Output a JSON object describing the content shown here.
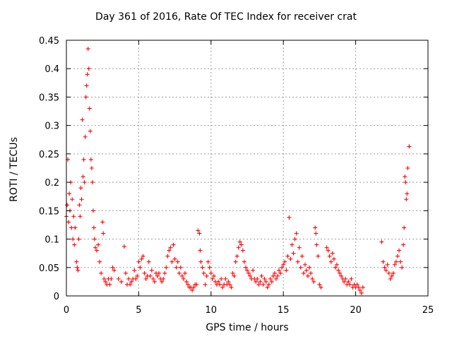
{
  "chart_data": {
    "type": "scatter",
    "title": "Day 361 of 2016, Rate Of TEC Index for receiver crat",
    "xlabel": "GPS time / hours",
    "ylabel": "ROTI / TECUs",
    "xlim": [
      0,
      25
    ],
    "ylim": [
      0,
      0.45
    ],
    "x_ticks": [
      0,
      5,
      10,
      15,
      20,
      25
    ],
    "y_ticks": [
      0,
      0.05,
      0.1,
      0.15,
      0.2,
      0.25,
      0.3,
      0.35,
      0.4,
      0.45
    ],
    "x_tick_labels": [
      "0",
      "5",
      "10",
      "15",
      "20",
      "25"
    ],
    "y_tick_labels": [
      "0",
      "0.05",
      "0.1",
      "0.15",
      "0.2",
      "0.25",
      "0.3",
      "0.35",
      "0.4",
      "0.45"
    ],
    "grid": true,
    "marker": "+",
    "marker_color": "#ff0000",
    "series": [
      {
        "name": "ROTI",
        "points": [
          [
            0.0,
            0.14
          ],
          [
            0.05,
            0.16
          ],
          [
            0.1,
            0.24
          ],
          [
            0.15,
            0.13
          ],
          [
            0.2,
            0.18
          ],
          [
            0.25,
            0.15
          ],
          [
            0.3,
            0.2
          ],
          [
            0.35,
            0.12
          ],
          [
            0.4,
            0.17
          ],
          [
            0.45,
            0.1
          ],
          [
            0.5,
            0.14
          ],
          [
            0.55,
            0.09
          ],
          [
            0.6,
            0.12
          ],
          [
            0.7,
            0.06
          ],
          [
            0.75,
            0.05
          ],
          [
            0.8,
            0.045
          ],
          [
            0.85,
            0.1
          ],
          [
            0.9,
            0.16
          ],
          [
            0.95,
            0.14
          ],
          [
            1.0,
            0.19
          ],
          [
            1.05,
            0.17
          ],
          [
            1.1,
            0.31
          ],
          [
            1.15,
            0.21
          ],
          [
            1.2,
            0.24
          ],
          [
            1.25,
            0.2
          ],
          [
            1.3,
            0.28
          ],
          [
            1.35,
            0.35
          ],
          [
            1.4,
            0.37
          ],
          [
            1.45,
            0.39
          ],
          [
            1.5,
            0.435
          ],
          [
            1.55,
            0.4
          ],
          [
            1.6,
            0.33
          ],
          [
            1.65,
            0.29
          ],
          [
            1.7,
            0.24
          ],
          [
            1.75,
            0.225
          ],
          [
            1.8,
            0.2
          ],
          [
            1.85,
            0.15
          ],
          [
            1.9,
            0.12
          ],
          [
            1.95,
            0.1
          ],
          [
            2.0,
            0.085
          ],
          [
            2.1,
            0.08
          ],
          [
            2.2,
            0.09
          ],
          [
            2.3,
            0.06
          ],
          [
            2.4,
            0.04
          ],
          [
            2.5,
            0.13
          ],
          [
            2.55,
            0.11
          ],
          [
            2.6,
            0.03
          ],
          [
            2.7,
            0.025
          ],
          [
            2.8,
            0.02
          ],
          [
            2.9,
            0.03
          ],
          [
            3.0,
            0.02
          ],
          [
            3.1,
            0.03
          ],
          [
            3.2,
            0.05
          ],
          [
            3.3,
            0.045
          ],
          [
            3.6,
            0.03
          ],
          [
            3.8,
            0.025
          ],
          [
            4.0,
            0.087
          ],
          [
            4.1,
            0.04
          ],
          [
            4.2,
            0.02
          ],
          [
            4.3,
            0.03
          ],
          [
            4.4,
            0.02
          ],
          [
            4.5,
            0.025
          ],
          [
            4.6,
            0.03
          ],
          [
            4.7,
            0.045
          ],
          [
            4.8,
            0.03
          ],
          [
            4.9,
            0.035
          ],
          [
            5.0,
            0.06
          ],
          [
            5.1,
            0.05
          ],
          [
            5.2,
            0.065
          ],
          [
            5.3,
            0.07
          ],
          [
            5.4,
            0.04
          ],
          [
            5.5,
            0.03
          ],
          [
            5.6,
            0.035
          ],
          [
            5.7,
            0.06
          ],
          [
            5.8,
            0.035
          ],
          [
            5.9,
            0.045
          ],
          [
            6.0,
            0.03
          ],
          [
            6.1,
            0.025
          ],
          [
            6.2,
            0.04
          ],
          [
            6.3,
            0.035
          ],
          [
            6.4,
            0.04
          ],
          [
            6.5,
            0.03
          ],
          [
            6.6,
            0.025
          ],
          [
            6.7,
            0.03
          ],
          [
            6.8,
            0.04
          ],
          [
            6.9,
            0.05
          ],
          [
            7.0,
            0.07
          ],
          [
            7.1,
            0.08
          ],
          [
            7.2,
            0.085
          ],
          [
            7.3,
            0.06
          ],
          [
            7.4,
            0.09
          ],
          [
            7.5,
            0.065
          ],
          [
            7.6,
            0.05
          ],
          [
            7.7,
            0.06
          ],
          [
            7.8,
            0.04
          ],
          [
            7.9,
            0.05
          ],
          [
            8.0,
            0.035
          ],
          [
            8.1,
            0.03
          ],
          [
            8.2,
            0.04
          ],
          [
            8.3,
            0.025
          ],
          [
            8.4,
            0.02
          ],
          [
            8.5,
            0.015
          ],
          [
            8.6,
            0.015
          ],
          [
            8.7,
            0.01
          ],
          [
            8.8,
            0.015
          ],
          [
            8.9,
            0.02
          ],
          [
            9.0,
            0.02
          ],
          [
            9.1,
            0.115
          ],
          [
            9.2,
            0.11
          ],
          [
            9.25,
            0.08
          ],
          [
            9.3,
            0.06
          ],
          [
            9.4,
            0.05
          ],
          [
            9.5,
            0.04
          ],
          [
            9.6,
            0.02
          ],
          [
            9.7,
            0.035
          ],
          [
            9.8,
            0.06
          ],
          [
            9.9,
            0.05
          ],
          [
            10.0,
            0.04
          ],
          [
            10.1,
            0.03
          ],
          [
            10.2,
            0.035
          ],
          [
            10.3,
            0.025
          ],
          [
            10.4,
            0.02
          ],
          [
            10.5,
            0.025
          ],
          [
            10.6,
            0.02
          ],
          [
            10.7,
            0.03
          ],
          [
            10.8,
            0.015
          ],
          [
            10.9,
            0.02
          ],
          [
            11.0,
            0.03
          ],
          [
            11.1,
            0.02
          ],
          [
            11.2,
            0.025
          ],
          [
            11.3,
            0.02
          ],
          [
            11.4,
            0.015
          ],
          [
            11.5,
            0.04
          ],
          [
            11.6,
            0.035
          ],
          [
            11.7,
            0.06
          ],
          [
            11.8,
            0.07
          ],
          [
            11.9,
            0.085
          ],
          [
            12.0,
            0.095
          ],
          [
            12.1,
            0.09
          ],
          [
            12.2,
            0.08
          ],
          [
            12.3,
            0.06
          ],
          [
            12.4,
            0.05
          ],
          [
            12.5,
            0.045
          ],
          [
            12.6,
            0.04
          ],
          [
            12.7,
            0.035
          ],
          [
            12.8,
            0.03
          ],
          [
            12.9,
            0.045
          ],
          [
            13.0,
            0.03
          ],
          [
            13.1,
            0.025
          ],
          [
            13.2,
            0.03
          ],
          [
            13.3,
            0.02
          ],
          [
            13.4,
            0.025
          ],
          [
            13.5,
            0.035
          ],
          [
            13.6,
            0.02
          ],
          [
            13.7,
            0.03
          ],
          [
            13.8,
            0.025
          ],
          [
            13.9,
            0.015
          ],
          [
            14.0,
            0.02
          ],
          [
            14.1,
            0.03
          ],
          [
            14.2,
            0.025
          ],
          [
            14.3,
            0.035
          ],
          [
            14.4,
            0.04
          ],
          [
            14.5,
            0.03
          ],
          [
            14.6,
            0.035
          ],
          [
            14.7,
            0.045
          ],
          [
            14.8,
            0.04
          ],
          [
            14.9,
            0.05
          ],
          [
            15.0,
            0.055
          ],
          [
            15.1,
            0.06
          ],
          [
            15.2,
            0.045
          ],
          [
            15.3,
            0.07
          ],
          [
            15.4,
            0.138
          ],
          [
            15.5,
            0.065
          ],
          [
            15.6,
            0.09
          ],
          [
            15.7,
            0.075
          ],
          [
            15.8,
            0.1
          ],
          [
            15.9,
            0.11
          ],
          [
            16.0,
            0.06
          ],
          [
            16.1,
            0.085
          ],
          [
            16.2,
            0.05
          ],
          [
            16.3,
            0.07
          ],
          [
            16.4,
            0.04
          ],
          [
            16.5,
            0.055
          ],
          [
            16.6,
            0.045
          ],
          [
            16.7,
            0.035
          ],
          [
            16.8,
            0.05
          ],
          [
            16.9,
            0.04
          ],
          [
            17.0,
            0.03
          ],
          [
            17.1,
            0.025
          ],
          [
            17.2,
            0.12
          ],
          [
            17.25,
            0.11
          ],
          [
            17.3,
            0.09
          ],
          [
            17.4,
            0.07
          ],
          [
            17.5,
            0.02
          ],
          [
            17.6,
            0.015
          ],
          [
            18.0,
            0.085
          ],
          [
            18.1,
            0.08
          ],
          [
            18.2,
            0.07
          ],
          [
            18.3,
            0.06
          ],
          [
            18.4,
            0.075
          ],
          [
            18.5,
            0.065
          ],
          [
            18.6,
            0.05
          ],
          [
            18.7,
            0.055
          ],
          [
            18.8,
            0.045
          ],
          [
            18.9,
            0.04
          ],
          [
            19.0,
            0.035
          ],
          [
            19.1,
            0.03
          ],
          [
            19.2,
            0.025
          ],
          [
            19.3,
            0.03
          ],
          [
            19.4,
            0.02
          ],
          [
            19.5,
            0.025
          ],
          [
            19.6,
            0.02
          ],
          [
            19.7,
            0.03
          ],
          [
            19.8,
            0.015
          ],
          [
            19.9,
            0.02
          ],
          [
            20.0,
            0.015
          ],
          [
            20.1,
            0.02
          ],
          [
            20.2,
            0.015
          ],
          [
            20.3,
            0.01
          ],
          [
            20.4,
            0.005
          ],
          [
            20.5,
            0.015
          ],
          [
            21.8,
            0.095
          ],
          [
            21.9,
            0.06
          ],
          [
            22.0,
            0.05
          ],
          [
            22.1,
            0.045
          ],
          [
            22.2,
            0.055
          ],
          [
            22.3,
            0.04
          ],
          [
            22.4,
            0.03
          ],
          [
            22.5,
            0.035
          ],
          [
            22.6,
            0.04
          ],
          [
            22.7,
            0.055
          ],
          [
            22.8,
            0.06
          ],
          [
            22.9,
            0.07
          ],
          [
            23.0,
            0.08
          ],
          [
            23.1,
            0.06
          ],
          [
            23.2,
            0.05
          ],
          [
            23.3,
            0.09
          ],
          [
            23.35,
            0.12
          ],
          [
            23.4,
            0.21
          ],
          [
            23.45,
            0.2
          ],
          [
            23.5,
            0.17
          ],
          [
            23.55,
            0.18
          ],
          [
            23.6,
            0.225
          ],
          [
            23.7,
            0.263
          ]
        ]
      }
    ]
  }
}
